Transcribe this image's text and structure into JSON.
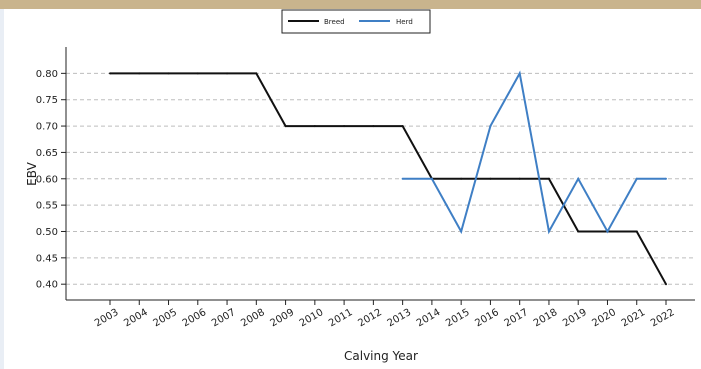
{
  "chart_data": {
    "type": "line",
    "title": "",
    "xlabel": "Calving Year",
    "ylabel": "EBV",
    "ylim": [
      0.37,
      0.85
    ],
    "yticks": [
      "0.40",
      "0.45",
      "0.50",
      "0.55",
      "0.60",
      "0.65",
      "0.70",
      "0.75",
      "0.80"
    ],
    "x": [
      "2003",
      "2004",
      "2005",
      "2006",
      "2007",
      "2008",
      "2009",
      "2010",
      "2011",
      "2012",
      "2013",
      "2014",
      "2015",
      "2016",
      "2017",
      "2018",
      "2019",
      "2020",
      "2021",
      "2022"
    ],
    "grid": "horizontal dashed",
    "legend_position": "top-center",
    "series": [
      {
        "name": "Breed",
        "color": "#111111",
        "values": [
          0.8,
          0.8,
          0.8,
          0.8,
          0.8,
          0.8,
          0.7,
          0.7,
          0.7,
          0.7,
          0.7,
          0.6,
          0.6,
          0.6,
          0.6,
          0.6,
          0.5,
          0.5,
          0.5,
          0.4
        ]
      },
      {
        "name": "Herd",
        "color": "#3f7fc5",
        "values": [
          null,
          null,
          null,
          null,
          null,
          null,
          null,
          null,
          null,
          null,
          0.6,
          0.6,
          0.5,
          0.7,
          0.8,
          0.5,
          0.6,
          0.5,
          0.6,
          0.6
        ]
      }
    ]
  }
}
